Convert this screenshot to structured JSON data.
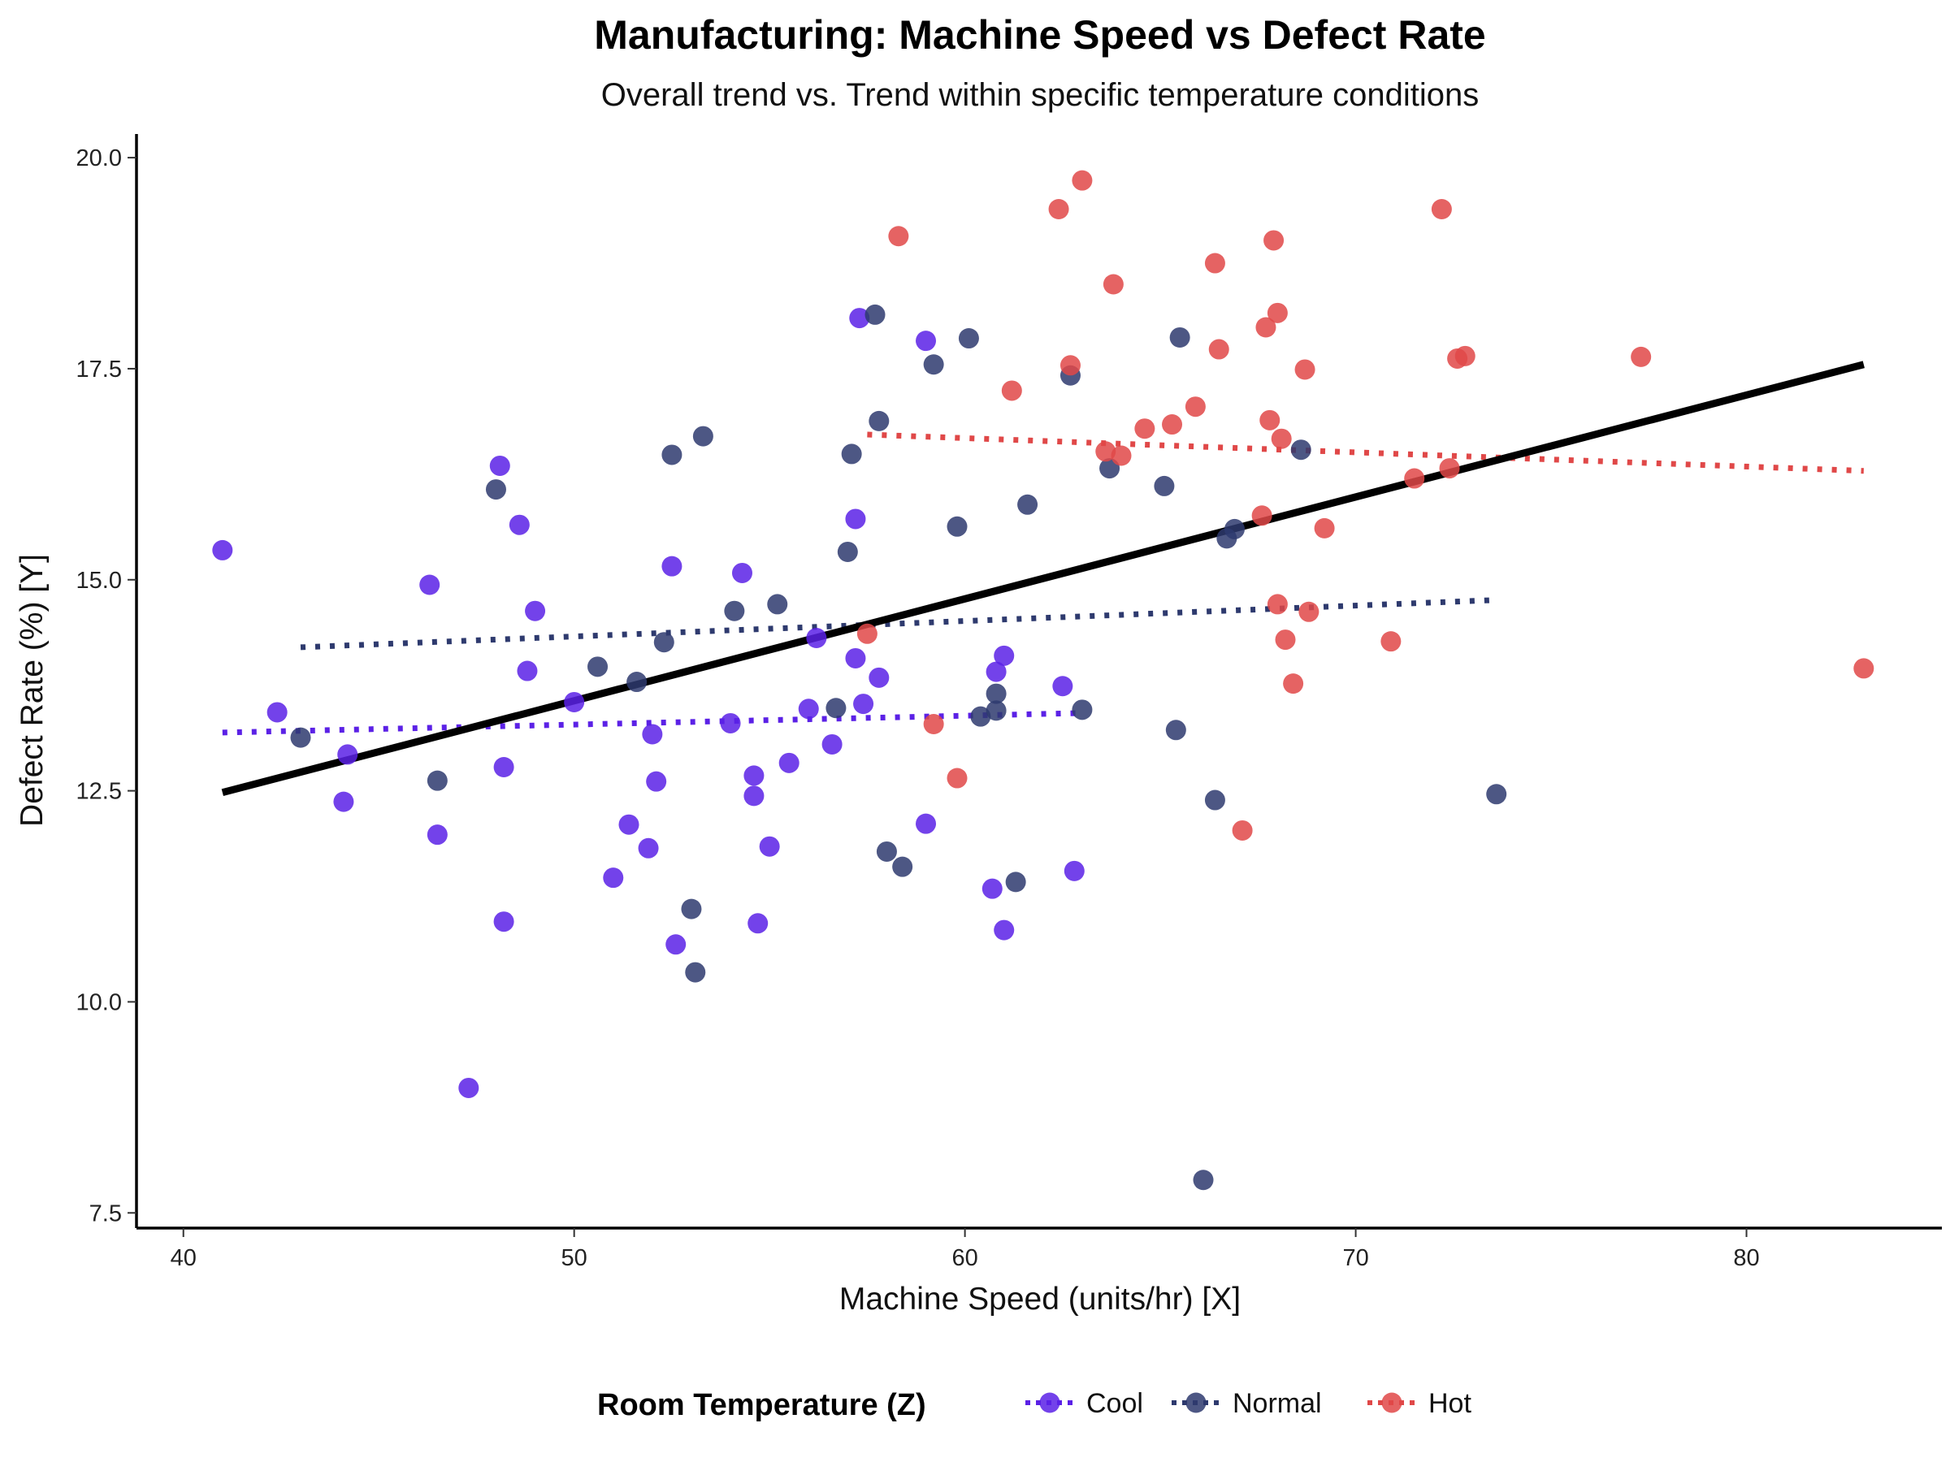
{
  "chart_data": {
    "type": "scatter",
    "title": "Manufacturing: Machine Speed vs Defect Rate",
    "subtitle": "Overall trend vs. Trend within specific temperature conditions",
    "xlabel": "Machine Speed (units/hr) [X]",
    "ylabel": "Defect Rate (%) [Y]",
    "xlim": [
      38.8,
      85.0
    ],
    "ylim": [
      7.32,
      20.28
    ],
    "xticks": [
      40,
      50,
      60,
      70,
      80
    ],
    "yticks": [
      7.5,
      10.0,
      12.5,
      15.0,
      17.5,
      20.0
    ],
    "xtick_labels": [
      "40",
      "50",
      "60",
      "70",
      "80"
    ],
    "ytick_labels": [
      "7.5",
      "10.0",
      "12.5",
      "15.0",
      "17.5",
      "20.0"
    ],
    "grid": false,
    "legend": {
      "title": "Room Temperature (Z)",
      "position": "bottom",
      "entries": [
        "Cool",
        "Normal",
        "Hot"
      ]
    },
    "overall_trend": {
      "name": "Overall trend",
      "color": "#000000",
      "x": [
        41.0,
        83.0
      ],
      "y": [
        12.48,
        17.55
      ]
    },
    "series": [
      {
        "name": "Cool",
        "color": "#5B21E6",
        "trend": {
          "x": [
            41.0,
            62.9
          ],
          "y": [
            13.19,
            13.42
          ]
        },
        "points": [
          [
            41.0,
            15.35
          ],
          [
            42.4,
            13.43
          ],
          [
            44.1,
            12.37
          ],
          [
            44.2,
            12.93
          ],
          [
            46.3,
            14.94
          ],
          [
            46.5,
            11.98
          ],
          [
            47.3,
            8.98
          ],
          [
            48.1,
            16.35
          ],
          [
            48.2,
            10.95
          ],
          [
            48.2,
            12.78
          ],
          [
            48.6,
            15.65
          ],
          [
            48.8,
            13.92
          ],
          [
            49.0,
            14.63
          ],
          [
            50.0,
            13.55
          ],
          [
            51.0,
            11.47
          ],
          [
            51.4,
            12.1
          ],
          [
            51.9,
            11.82
          ],
          [
            52.0,
            13.17
          ],
          [
            52.1,
            12.61
          ],
          [
            52.5,
            15.16
          ],
          [
            52.6,
            10.68
          ],
          [
            54.0,
            13.3
          ],
          [
            54.3,
            15.08
          ],
          [
            54.6,
            12.68
          ],
          [
            54.6,
            12.44
          ],
          [
            54.7,
            10.93
          ],
          [
            55.0,
            11.84
          ],
          [
            55.5,
            12.83
          ],
          [
            56.0,
            13.47
          ],
          [
            56.2,
            14.31
          ],
          [
            56.6,
            13.05
          ],
          [
            57.2,
            15.72
          ],
          [
            57.3,
            18.1
          ],
          [
            57.4,
            13.53
          ],
          [
            57.2,
            14.07
          ],
          [
            57.8,
            13.84
          ],
          [
            59.0,
            17.83
          ],
          [
            59.0,
            12.11
          ],
          [
            60.7,
            11.34
          ],
          [
            60.8,
            13.91
          ],
          [
            61.0,
            14.1
          ],
          [
            61.0,
            10.85
          ],
          [
            62.5,
            13.74
          ],
          [
            62.8,
            11.55
          ]
        ]
      },
      {
        "name": "Normal",
        "color": "#2E3A6E",
        "trend": {
          "x": [
            43.0,
            73.6
          ],
          "y": [
            14.2,
            14.76
          ]
        },
        "points": [
          [
            43.0,
            13.13
          ],
          [
            46.5,
            12.62
          ],
          [
            48.0,
            16.07
          ],
          [
            50.6,
            13.97
          ],
          [
            51.6,
            13.79
          ],
          [
            52.3,
            14.26
          ],
          [
            52.5,
            16.48
          ],
          [
            53.0,
            11.1
          ],
          [
            53.1,
            10.35
          ],
          [
            53.3,
            16.7
          ],
          [
            54.1,
            14.63
          ],
          [
            55.2,
            14.71
          ],
          [
            56.7,
            13.48
          ],
          [
            57.0,
            15.33
          ],
          [
            57.1,
            16.49
          ],
          [
            57.7,
            18.14
          ],
          [
            57.8,
            16.88
          ],
          [
            58.0,
            11.78
          ],
          [
            58.4,
            11.6
          ],
          [
            59.2,
            17.55
          ],
          [
            59.8,
            15.63
          ],
          [
            60.1,
            17.86
          ],
          [
            60.4,
            13.38
          ],
          [
            60.8,
            13.65
          ],
          [
            60.8,
            13.45
          ],
          [
            61.3,
            11.42
          ],
          [
            61.6,
            15.89
          ],
          [
            62.7,
            17.42
          ],
          [
            63.0,
            13.46
          ],
          [
            63.7,
            16.32
          ],
          [
            65.1,
            16.11
          ],
          [
            65.4,
            13.22
          ],
          [
            65.5,
            17.87
          ],
          [
            66.1,
            7.89
          ],
          [
            66.4,
            12.39
          ],
          [
            66.7,
            15.49
          ],
          [
            66.9,
            15.6
          ],
          [
            68.6,
            16.54
          ],
          [
            73.6,
            12.46
          ]
        ]
      },
      {
        "name": "Hot",
        "color": "#E04848",
        "trend": {
          "x": [
            57.5,
            83.0
          ],
          "y": [
            16.72,
            16.29
          ]
        },
        "points": [
          [
            57.5,
            14.36
          ],
          [
            58.3,
            19.07
          ],
          [
            59.2,
            13.29
          ],
          [
            59.8,
            12.65
          ],
          [
            61.2,
            17.24
          ],
          [
            62.4,
            19.39
          ],
          [
            62.7,
            17.54
          ],
          [
            63.0,
            19.73
          ],
          [
            63.6,
            16.52
          ],
          [
            63.8,
            18.5
          ],
          [
            64.0,
            16.47
          ],
          [
            64.6,
            16.79
          ],
          [
            65.3,
            16.84
          ],
          [
            65.9,
            17.05
          ],
          [
            66.4,
            18.75
          ],
          [
            66.5,
            17.73
          ],
          [
            67.1,
            12.03
          ],
          [
            67.6,
            15.76
          ],
          [
            67.7,
            17.99
          ],
          [
            67.8,
            16.89
          ],
          [
            67.9,
            19.02
          ],
          [
            68.0,
            14.71
          ],
          [
            68.0,
            18.16
          ],
          [
            68.1,
            16.67
          ],
          [
            68.2,
            14.29
          ],
          [
            68.4,
            13.77
          ],
          [
            68.7,
            17.49
          ],
          [
            68.8,
            14.62
          ],
          [
            69.2,
            15.61
          ],
          [
            70.9,
            14.27
          ],
          [
            71.5,
            16.2
          ],
          [
            72.2,
            19.39
          ],
          [
            72.4,
            16.32
          ],
          [
            72.6,
            17.62
          ],
          [
            72.8,
            17.65
          ],
          [
            77.3,
            17.64
          ],
          [
            83.0,
            13.95
          ]
        ]
      }
    ]
  }
}
